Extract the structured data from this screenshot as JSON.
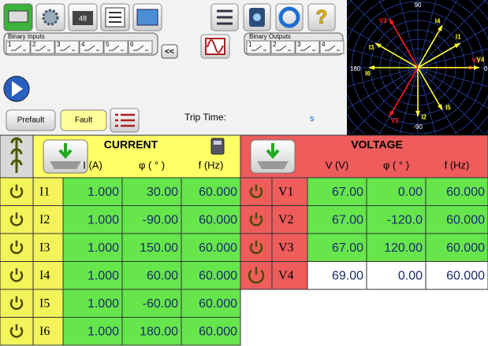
{
  "toolbar": {
    "battery": "48"
  },
  "binary_inputs": {
    "title": "Binary Inputs",
    "channels": [
      "1",
      "2",
      "3",
      "4",
      "5",
      "6"
    ]
  },
  "collapse": "<<",
  "binary_outputs": {
    "title": "Binary Outputs",
    "channels": [
      "1",
      "2",
      "3",
      "4"
    ]
  },
  "buttons": {
    "prefault": "Prefault",
    "fault": "Fault"
  },
  "trip_time": {
    "label": "Trip Time:",
    "unit": "s"
  },
  "polar": {
    "top": "90",
    "left": "180",
    "right": "0",
    "bottom": "-90"
  },
  "table": {
    "current": {
      "title": "CURRENT",
      "headers": [
        "I (A)",
        "φ ( ° )",
        "f (Hz)"
      ],
      "rows": [
        {
          "label": "I1",
          "values": [
            "1.000",
            "30.00",
            "60.000"
          ]
        },
        {
          "label": "I2",
          "values": [
            "1.000",
            "-90.00",
            "60.000"
          ]
        },
        {
          "label": "I3",
          "values": [
            "1.000",
            "150.00",
            "60.000"
          ]
        },
        {
          "label": "I4",
          "values": [
            "1.000",
            "60.00",
            "60.000"
          ]
        },
        {
          "label": "I5",
          "values": [
            "1.000",
            "-60.00",
            "60.000"
          ]
        },
        {
          "label": "I6",
          "values": [
            "1.000",
            "180.00",
            "60.000"
          ]
        }
      ]
    },
    "voltage": {
      "title": "VOLTAGE",
      "headers": [
        "V (V)",
        "φ ( ° )",
        "f (Hz)"
      ],
      "rows": [
        {
          "label": "V1",
          "values": [
            "67.00",
            "0.00",
            "60.000"
          ]
        },
        {
          "label": "V2",
          "values": [
            "67.00",
            "-120.0",
            "60.000"
          ]
        },
        {
          "label": "V3",
          "values": [
            "67.00",
            "120.00",
            "60.000"
          ]
        },
        {
          "label": "V4",
          "values": [
            "69.00",
            "0.00",
            "60.000"
          ]
        }
      ]
    }
  }
}
